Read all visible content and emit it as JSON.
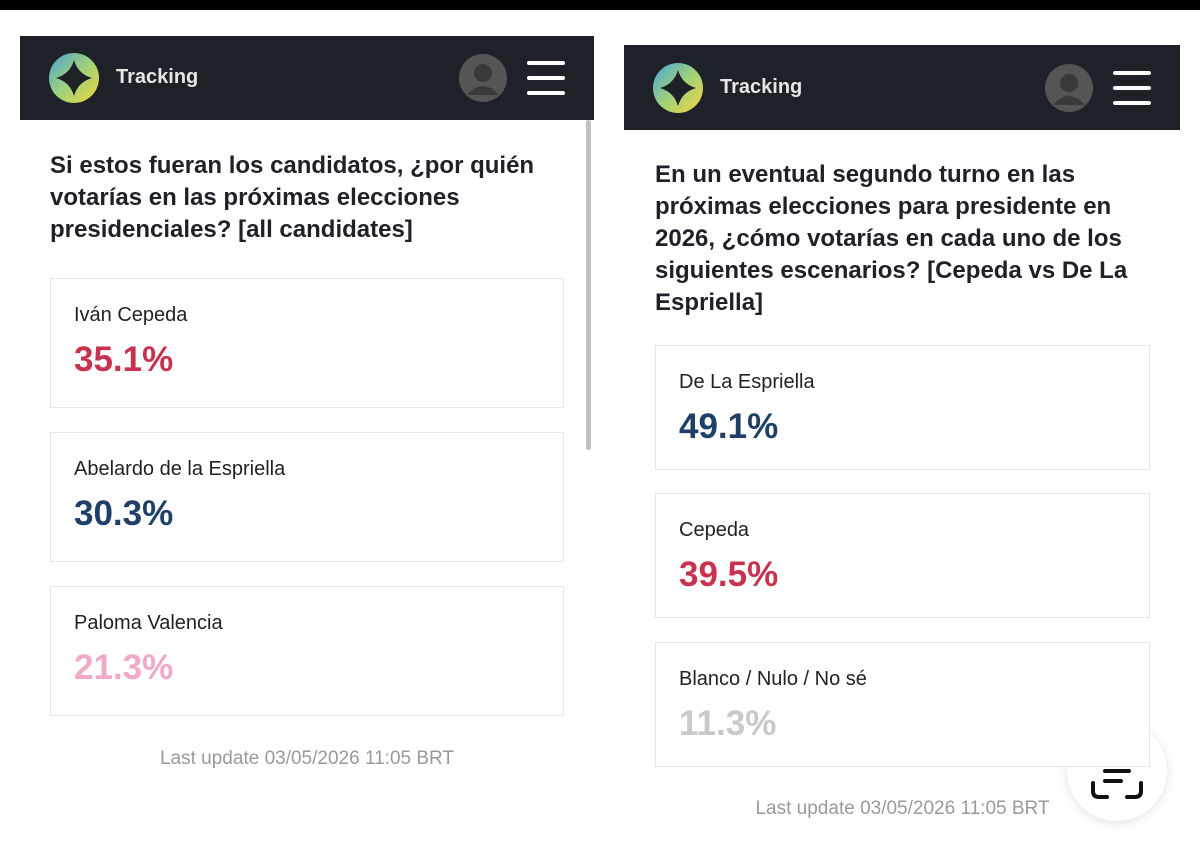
{
  "panels": [
    {
      "header": {
        "brand": "Tracking"
      },
      "question": "Si estos fueran los candidatos, ¿por quién votarías en las próximas elecciones presidenciales? [all candidates]",
      "items": [
        {
          "name": "Iván Cepeda",
          "value": "35.1%",
          "color": "#c8324e"
        },
        {
          "name": "Abelardo de la Espriella",
          "value": "30.3%",
          "color": "#1e3f66"
        },
        {
          "name": "Paloma Valencia",
          "value": "21.3%",
          "color": "#f0a9c6"
        }
      ],
      "footer": "Last update 03/05/2026 11:05 BRT"
    },
    {
      "header": {
        "brand": "Tracking"
      },
      "question": "En un eventual segundo turno en las próximas elecciones para presidente en 2026, ¿cómo votarías en cada uno de los siguientes escenarios? [Cepeda vs De La Espriella]",
      "items": [
        {
          "name": "De La Espriella",
          "value": "49.1%",
          "color": "#1e3f66"
        },
        {
          "name": "Cepeda",
          "value": "39.5%",
          "color": "#c8324e"
        },
        {
          "name": "Blanco / Nulo / No sé",
          "value": "11.3%",
          "color": "#c9c9c9"
        }
      ],
      "footer": "Last update 03/05/2026 11:05 BRT"
    }
  ]
}
